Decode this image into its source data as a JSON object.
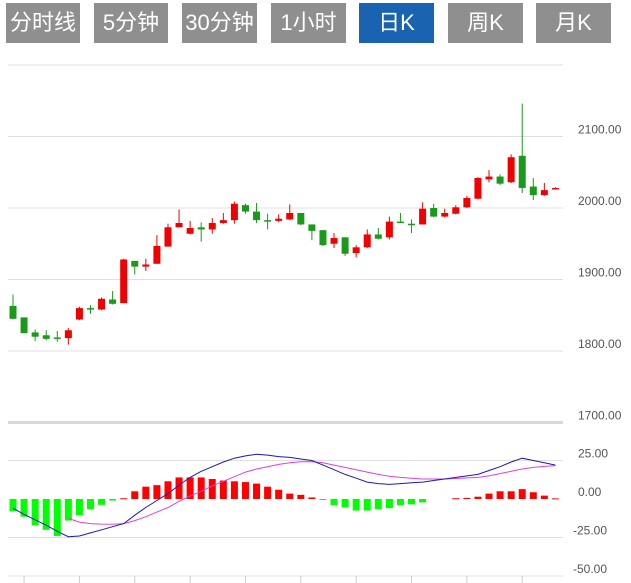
{
  "tabs": [
    {
      "label": "分时线",
      "active": false
    },
    {
      "label": "5分钟",
      "active": false
    },
    {
      "label": "30分钟",
      "active": false
    },
    {
      "label": "1小时",
      "active": false
    },
    {
      "label": "日K",
      "active": true
    },
    {
      "label": "周K",
      "active": false
    },
    {
      "label": "月K",
      "active": false
    }
  ],
  "colors": {
    "up": "#f00000",
    "down": "#1a9a1a",
    "macd_up": "#ff0000",
    "macd_down": "#00ff00",
    "dif": "#1a1ab0",
    "dea": "#e040e0",
    "active_tab": "#1a63b0",
    "tab": "#8f8f8f"
  },
  "chart_data": [
    {
      "type": "candlestick",
      "ylim": [
        1700,
        2200
      ],
      "yticks": [
        "2100.00",
        "2000.00",
        "1900.00",
        "1800.00",
        "1700.00"
      ],
      "grid": true,
      "ohlc": [
        [
          1863,
          1845,
          1879,
          1844
        ],
        [
          1847,
          1825,
          1847,
          1825
        ],
        [
          1826,
          1820,
          1830,
          1814
        ],
        [
          1822,
          1817,
          1829,
          1815
        ],
        [
          1819,
          1818,
          1828,
          1813
        ],
        [
          1818,
          1829,
          1832,
          1809
        ],
        [
          1844,
          1860,
          1862,
          1843
        ],
        [
          1860,
          1858,
          1864,
          1852
        ],
        [
          1858,
          1873,
          1875,
          1857
        ],
        [
          1872,
          1866,
          1884,
          1865
        ],
        [
          1867,
          1928,
          1929,
          1867
        ],
        [
          1926,
          1918,
          1926,
          1907
        ],
        [
          1918,
          1921,
          1929,
          1912
        ],
        [
          1922,
          1947,
          1962,
          1922
        ],
        [
          1946,
          1973,
          1978,
          1946
        ],
        [
          1973,
          1979,
          1998,
          1973
        ],
        [
          1964,
          1972,
          1982,
          1963
        ],
        [
          1973,
          1970,
          1980,
          1953
        ],
        [
          1970,
          1979,
          1986,
          1964
        ],
        [
          1979,
          1983,
          1993,
          1978
        ],
        [
          1983,
          2006,
          2009,
          1978
        ],
        [
          2004,
          1995,
          2006,
          1992
        ],
        [
          1995,
          1983,
          2007,
          1979
        ],
        [
          1983,
          1982,
          1992,
          1970
        ],
        [
          1982,
          1985,
          1991,
          1980
        ],
        [
          1984,
          1993,
          2005,
          1983
        ],
        [
          1993,
          1977,
          1993,
          1976
        ],
        [
          1977,
          1968,
          1977,
          1955
        ],
        [
          1969,
          1948,
          1969,
          1947
        ],
        [
          1950,
          1958,
          1965,
          1944
        ],
        [
          1959,
          1936,
          1959,
          1933
        ],
        [
          1937,
          1945,
          1948,
          1931
        ],
        [
          1945,
          1963,
          1970,
          1944
        ],
        [
          1963,
          1957,
          1972,
          1956
        ],
        [
          1959,
          1981,
          1988,
          1956
        ],
        [
          1981,
          1979,
          1993,
          1979
        ],
        [
          1978,
          1977,
          1984,
          1965
        ],
        [
          1977,
          1999,
          2008,
          1977
        ],
        [
          2000,
          1988,
          2006,
          1987
        ],
        [
          1988,
          1993,
          1999,
          1987
        ],
        [
          1992,
          2001,
          2004,
          1991
        ],
        [
          2001,
          2014,
          2017,
          2000
        ],
        [
          2013,
          2042,
          2043,
          2012
        ],
        [
          2040,
          2044,
          2053,
          2036
        ],
        [
          2044,
          2034,
          2047,
          2032
        ],
        [
          2036,
          2071,
          2075,
          2035
        ],
        [
          2073,
          2028,
          2146,
          2021
        ],
        [
          2030,
          2018,
          2042,
          2011
        ],
        [
          2018,
          2025,
          2035,
          2017
        ],
        [
          2027,
          2028,
          2029,
          2026
        ]
      ]
    },
    {
      "type": "macd",
      "ylim": [
        -50,
        35
      ],
      "yticks": [
        "25.00",
        "0.00",
        "-25.00",
        "-50.00"
      ],
      "grid": true,
      "histogram": [
        -8,
        -11.5,
        -17,
        -20,
        -24,
        -14,
        -10.5,
        -6.6,
        -3.8,
        -1,
        0.5,
        5,
        8,
        9,
        11.5,
        14,
        14,
        14,
        13,
        12,
        11.5,
        11,
        10,
        8,
        6,
        3.5,
        2.7,
        1,
        -0.5,
        -4,
        -5.5,
        -7.5,
        -7.5,
        -6.6,
        -6,
        -4,
        -3.5,
        -2.2,
        0,
        0,
        0.5,
        0.7,
        1.5,
        3.5,
        5,
        5,
        6.4,
        4.4,
        2.2,
        0.4
      ],
      "dif": [
        -6,
        -10,
        -13.5,
        -17,
        -21,
        -24.5,
        -24,
        -22,
        -20,
        -18,
        -16,
        -10.5,
        -5.5,
        -1,
        3.5,
        9,
        14,
        18,
        21,
        24,
        26.5,
        28,
        29,
        28.5,
        27.5,
        27,
        26,
        25,
        22,
        19,
        16,
        13.5,
        11,
        10,
        9.5,
        10,
        10.5,
        11,
        12,
        13,
        14,
        15,
        16,
        18.5,
        21,
        24,
        26.5,
        25,
        23.5,
        22
      ],
      "dea": [
        null,
        null,
        null,
        null,
        null,
        -12.6,
        -15,
        -16,
        -16.3,
        -16.4,
        -16,
        -14,
        -11.5,
        -8.5,
        -5.5,
        -1.5,
        2,
        5,
        8.5,
        11.5,
        14.5,
        17.5,
        19.5,
        21,
        22.5,
        23.5,
        24.2,
        24.3,
        23.5,
        22,
        20.5,
        19,
        17.5,
        16,
        14.8,
        14,
        13.5,
        13,
        13,
        13,
        13.3,
        13.7,
        14,
        15,
        16.5,
        18,
        19.5,
        20.5,
        21.2,
        21.7
      ]
    }
  ]
}
